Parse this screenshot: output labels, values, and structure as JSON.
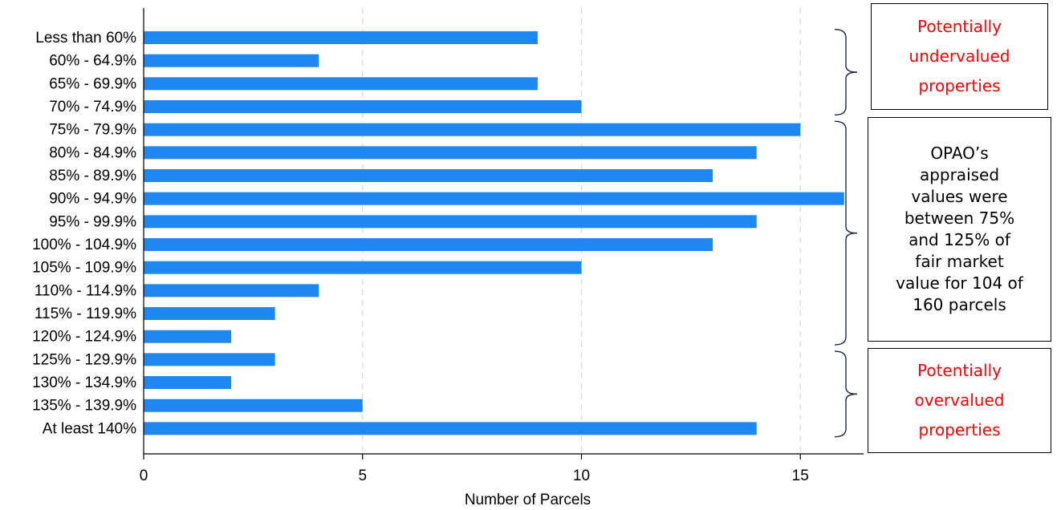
{
  "chart_data": {
    "type": "bar",
    "orientation": "horizontal",
    "categories": [
      "Less than 60%",
      "60% - 64.9%",
      "65% - 69.9%",
      "70% - 74.9%",
      "75% - 79.9%",
      "80% - 84.9%",
      "85% - 89.9%",
      "90% - 94.9%",
      "95% - 99.9%",
      "100% - 104.9%",
      "105% - 109.9%",
      "110% - 114.9%",
      "115% - 119.9%",
      "120% - 124.9%",
      "125% - 129.9%",
      "130% - 134.9%",
      "135% - 139.9%",
      "At least 140%"
    ],
    "values": [
      9,
      4,
      9,
      10,
      15,
      14,
      13,
      16,
      14,
      13,
      10,
      4,
      3,
      2,
      3,
      2,
      5,
      14
    ],
    "xlabel": "Number of Parcels",
    "ylabel": "",
    "title": "",
    "xlim": [
      0,
      16.3
    ],
    "xticks": [
      0,
      5,
      10,
      15
    ],
    "grid": "vertical dashed",
    "bar_color": "#1f88f0"
  },
  "annotations": [
    {
      "text": "Potentially undervalued properties",
      "lines": [
        "Potentially",
        "undervalued",
        "properties"
      ],
      "color": "#ff0000",
      "range": [
        0,
        3
      ]
    },
    {
      "text": "OPAO’s appraised values were between 75% and 125% of fair market value for 104 of 160 parcels",
      "lines": [
        "OPAO’s",
        "appraised",
        "values were",
        "between 75%",
        "and 125% of",
        "fair market",
        "value for 104 of",
        "160 parcels"
      ],
      "color": "#000000",
      "range": [
        4,
        13
      ]
    },
    {
      "text": "Potentially overvalued properties",
      "lines": [
        "Potentially",
        "overvalued",
        "properties"
      ],
      "color": "#ff0000",
      "range": [
        14,
        17
      ]
    }
  ]
}
